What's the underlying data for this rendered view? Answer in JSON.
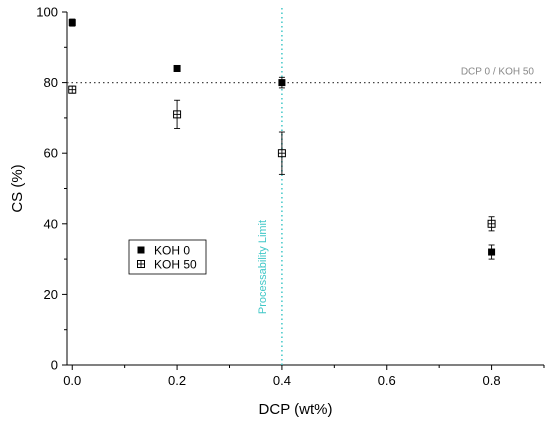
{
  "chart_data": {
    "type": "scatter",
    "title": "",
    "xlabel": "DCP (wt%)",
    "ylabel": "CS (%)",
    "xlim": [
      -0.01,
      0.9
    ],
    "ylim": [
      0,
      100
    ],
    "x_ticks": [
      0.0,
      0.2,
      0.4,
      0.6,
      0.8
    ],
    "x_tick_labels": [
      "0.0",
      "0.2",
      "0.4",
      "0.6",
      "0.8"
    ],
    "y_ticks": [
      0,
      20,
      40,
      60,
      80,
      100
    ],
    "y_tick_labels": [
      "0",
      "20",
      "40",
      "60",
      "80",
      "100"
    ],
    "grid": false,
    "legend_position": "center-left",
    "series": [
      {
        "name": "KOH 0",
        "marker": "filled-square",
        "color": "#000000",
        "points": [
          {
            "x": 0.0,
            "y": 97,
            "err": 1
          },
          {
            "x": 0.2,
            "y": 84,
            "err": 0.8
          },
          {
            "x": 0.4,
            "y": 80,
            "err": 1.5
          },
          {
            "x": 0.8,
            "y": 32,
            "err": 2
          }
        ]
      },
      {
        "name": "KOH 50",
        "marker": "open-square-cross",
        "color": "#000000",
        "points": [
          {
            "x": 0.0,
            "y": 78,
            "err": 1
          },
          {
            "x": 0.2,
            "y": 71,
            "err": 4
          },
          {
            "x": 0.4,
            "y": 60,
            "err": 6
          },
          {
            "x": 0.8,
            "y": 40,
            "err": 2
          }
        ]
      }
    ],
    "reference_lines": [
      {
        "orientation": "horizontal",
        "value": 80,
        "label": "DCP 0 / KOH 50",
        "color": "#444444",
        "style": "dotted"
      },
      {
        "orientation": "vertical",
        "value": 0.4,
        "label": "Processability Limit",
        "color": "#3fc7c7",
        "style": "dotted"
      }
    ]
  }
}
